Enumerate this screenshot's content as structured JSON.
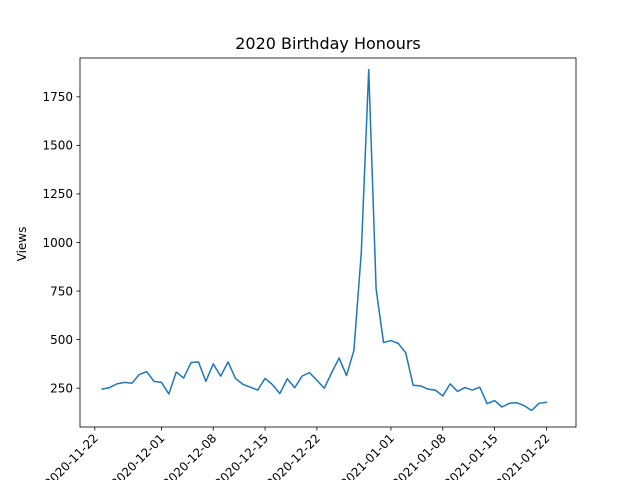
{
  "chart_data": {
    "type": "line",
    "title": "2020 Birthday Honours",
    "xlabel": "",
    "ylabel": "Views",
    "ylim": [
      50,
      1950
    ],
    "xlim": [
      "2020-11-20",
      "2021-01-26"
    ],
    "grid": false,
    "series_color": "#1f77b4",
    "y_ticks": [
      250,
      500,
      750,
      1000,
      1250,
      1500,
      1750
    ],
    "x_tick_labels": [
      "2020-11-22",
      "2020-12-01",
      "2020-12-08",
      "2020-12-15",
      "2020-12-22",
      "2021-01-01",
      "2021-01-08",
      "2021-01-15",
      "2021-01-22"
    ],
    "x_tick_dates": [
      "2020-11-22",
      "2020-12-01",
      "2020-12-08",
      "2020-12-15",
      "2020-12-22",
      "2021-01-01",
      "2021-01-08",
      "2021-01-15",
      "2021-01-22"
    ],
    "series": [
      {
        "name": "Views",
        "start_date": "2020-11-23",
        "values": [
          245,
          253,
          272,
          280,
          275,
          320,
          335,
          285,
          280,
          220,
          333,
          302,
          382,
          385,
          285,
          375,
          312,
          385,
          300,
          270,
          255,
          240,
          300,
          268,
          222,
          298,
          252,
          312,
          330,
          290,
          250,
          330,
          405,
          315,
          445,
          950,
          1890,
          760,
          485,
          495,
          480,
          432,
          265,
          262,
          245,
          240,
          210,
          272,
          233,
          253,
          240,
          255,
          170,
          186,
          153,
          172,
          175,
          160,
          135,
          172,
          177
        ]
      }
    ]
  }
}
